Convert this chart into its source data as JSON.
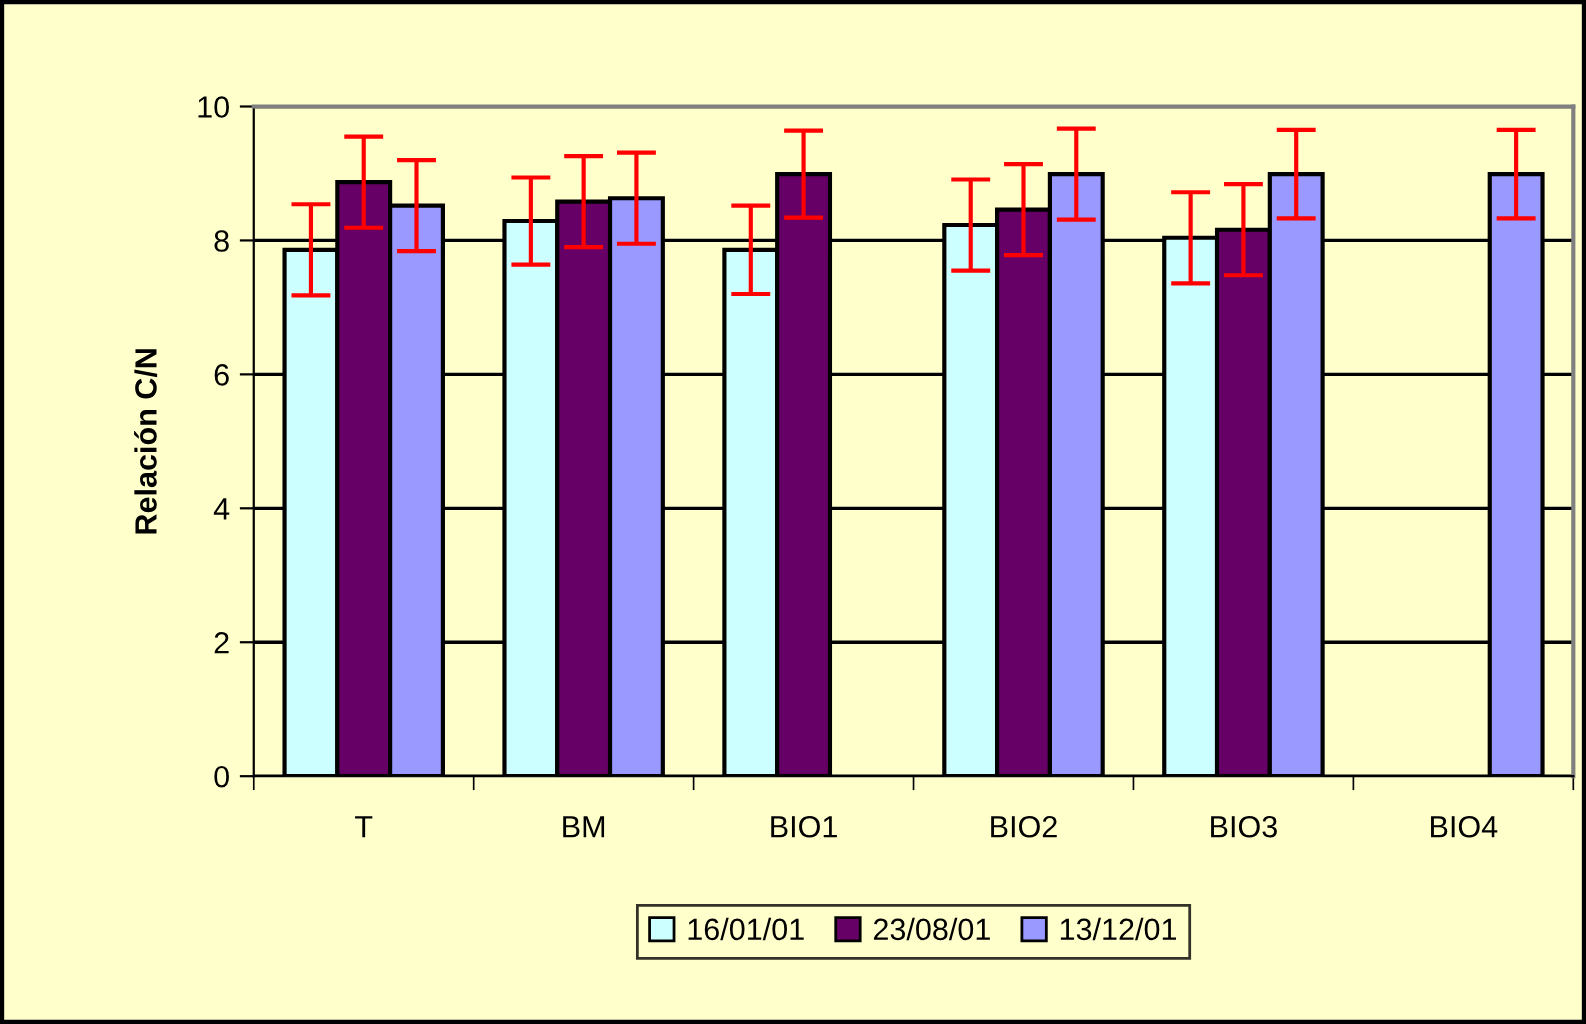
{
  "chart_data": {
    "type": "bar",
    "ylabel": "Relación C/N",
    "categories": [
      "T",
      "BM",
      "BIO1",
      "BIO2",
      "BIO3",
      "BIO4"
    ],
    "series": [
      {
        "name": "16/01/01",
        "color": "#ccffff",
        "values": [
          7.86,
          8.29,
          7.86,
          8.23,
          8.04,
          null
        ],
        "errors": [
          0.68,
          0.65,
          0.66,
          0.68,
          0.68,
          null
        ]
      },
      {
        "name": "23/08/01",
        "color": "#660066",
        "values": [
          8.87,
          8.58,
          8.99,
          8.46,
          8.16,
          null
        ],
        "errors": [
          0.68,
          0.68,
          0.65,
          0.68,
          0.68,
          null
        ]
      },
      {
        "name": "13/12/01",
        "color": "#9999ff",
        "values": [
          8.52,
          8.63,
          null,
          8.99,
          8.99,
          8.99
        ],
        "errors": [
          0.68,
          0.68,
          null,
          0.68,
          0.66,
          0.66
        ]
      }
    ],
    "ylim": [
      0,
      10
    ],
    "yticks": [
      0,
      2,
      4,
      6,
      8,
      10
    ],
    "grid": "y",
    "legend": "bottom"
  }
}
